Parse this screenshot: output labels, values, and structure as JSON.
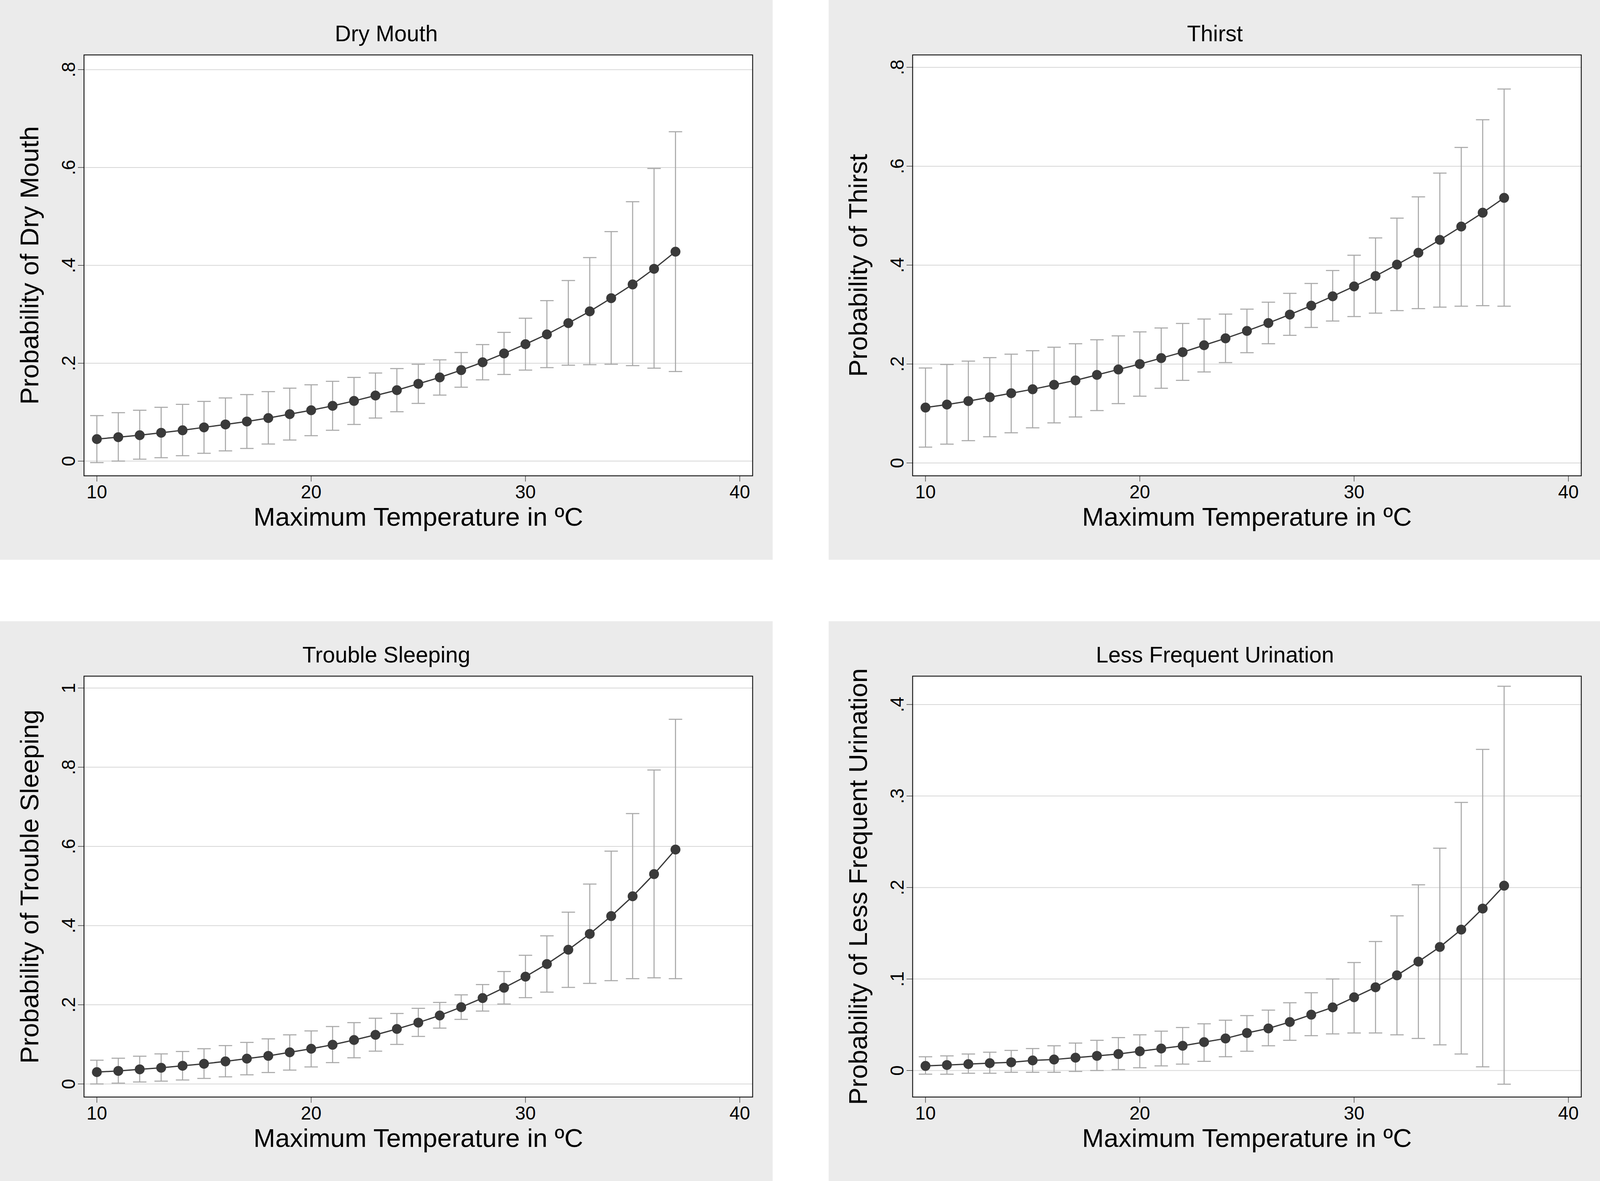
{
  "chart_data": [
    {
      "type": "line",
      "title": "Dry Mouth",
      "x_label": "Maximum Temperature in ºC",
      "y_label": "Probability of Dry Mouth",
      "marker": "circle",
      "color": "#3a3a3a",
      "grid": true,
      "x": [
        10,
        11,
        12,
        13,
        14,
        15,
        16,
        17,
        18,
        19,
        20,
        21,
        22,
        23,
        24,
        25,
        26,
        27,
        28,
        29,
        30,
        31,
        32,
        33,
        34,
        35,
        36,
        37
      ],
      "values": [
        0.045,
        0.049,
        0.053,
        0.058,
        0.063,
        0.069,
        0.075,
        0.081,
        0.088,
        0.096,
        0.104,
        0.113,
        0.123,
        0.134,
        0.145,
        0.158,
        0.171,
        0.186,
        0.202,
        0.22,
        0.239,
        0.259,
        0.282,
        0.306,
        0.333,
        0.361,
        0.393,
        0.428
      ],
      "ci_low": [
        -0.003,
        0.0,
        0.004,
        0.007,
        0.011,
        0.016,
        0.021,
        0.026,
        0.035,
        0.043,
        0.052,
        0.063,
        0.075,
        0.088,
        0.101,
        0.118,
        0.135,
        0.151,
        0.166,
        0.177,
        0.186,
        0.191,
        0.196,
        0.197,
        0.198,
        0.195,
        0.19,
        0.183
      ],
      "ci_high": [
        0.093,
        0.099,
        0.104,
        0.11,
        0.116,
        0.122,
        0.129,
        0.136,
        0.142,
        0.149,
        0.156,
        0.163,
        0.171,
        0.18,
        0.189,
        0.198,
        0.207,
        0.222,
        0.238,
        0.263,
        0.292,
        0.328,
        0.369,
        0.416,
        0.469,
        0.53,
        0.598,
        0.673
      ],
      "xlim": [
        9.4,
        40.6
      ],
      "xticks": [
        10,
        20,
        30,
        40
      ],
      "ylim": [
        -0.03,
        0.83
      ],
      "yticks": [
        0,
        {
          "value": 0.2,
          "label": ".2"
        },
        {
          "value": 0.4,
          "label": ".4"
        },
        {
          "value": 0.6,
          "label": ".6"
        },
        {
          "value": 0.8,
          "label": ".8"
        }
      ]
    },
    {
      "type": "line",
      "title": "Thirst",
      "x_label": "Maximum Temperature in ºC",
      "y_label": "Probability of Thirst",
      "marker": "circle",
      "color": "#3a3a3a",
      "grid": true,
      "x": [
        10,
        11,
        12,
        13,
        14,
        15,
        16,
        17,
        18,
        19,
        20,
        21,
        22,
        23,
        24,
        25,
        26,
        27,
        28,
        29,
        30,
        31,
        32,
        33,
        34,
        35,
        36,
        37
      ],
      "values": [
        0.112,
        0.118,
        0.125,
        0.133,
        0.141,
        0.149,
        0.158,
        0.167,
        0.178,
        0.189,
        0.2,
        0.212,
        0.224,
        0.238,
        0.252,
        0.267,
        0.283,
        0.3,
        0.318,
        0.337,
        0.357,
        0.378,
        0.401,
        0.425,
        0.451,
        0.478,
        0.506,
        0.536
      ],
      "ci_low": [
        0.032,
        0.038,
        0.045,
        0.053,
        0.061,
        0.071,
        0.081,
        0.093,
        0.106,
        0.12,
        0.135,
        0.151,
        0.167,
        0.184,
        0.203,
        0.223,
        0.241,
        0.258,
        0.274,
        0.287,
        0.296,
        0.303,
        0.308,
        0.312,
        0.315,
        0.317,
        0.318,
        0.317
      ],
      "ci_high": [
        0.192,
        0.199,
        0.206,
        0.213,
        0.22,
        0.227,
        0.234,
        0.241,
        0.249,
        0.257,
        0.265,
        0.273,
        0.282,
        0.291,
        0.301,
        0.311,
        0.325,
        0.343,
        0.363,
        0.389,
        0.42,
        0.455,
        0.495,
        0.538,
        0.586,
        0.638,
        0.694,
        0.756
      ],
      "xlim": [
        9.4,
        40.6
      ],
      "xticks": [
        10,
        20,
        30,
        40
      ],
      "ylim": [
        -0.026,
        0.825
      ],
      "yticks": [
        0,
        {
          "value": 0.2,
          "label": ".2"
        },
        {
          "value": 0.4,
          "label": ".4"
        },
        {
          "value": 0.6,
          "label": ".6"
        },
        {
          "value": 0.8,
          "label": ".8"
        }
      ]
    },
    {
      "type": "line",
      "title": "Trouble Sleeping",
      "x_label": "Maximum Temperature in ºC",
      "y_label": "Probability of Trouble Sleeping",
      "marker": "circle",
      "color": "#3a3a3a",
      "grid": true,
      "x": [
        10,
        11,
        12,
        13,
        14,
        15,
        16,
        17,
        18,
        19,
        20,
        21,
        22,
        23,
        24,
        25,
        26,
        27,
        28,
        29,
        30,
        31,
        32,
        33,
        34,
        35,
        36,
        37
      ],
      "values": [
        0.03,
        0.033,
        0.037,
        0.041,
        0.046,
        0.051,
        0.057,
        0.064,
        0.071,
        0.08,
        0.089,
        0.099,
        0.111,
        0.124,
        0.139,
        0.155,
        0.173,
        0.194,
        0.217,
        0.243,
        0.271,
        0.303,
        0.339,
        0.379,
        0.424,
        0.474,
        0.53,
        0.592
      ],
      "ci_low": [
        0.0,
        0.002,
        0.005,
        0.007,
        0.01,
        0.014,
        0.018,
        0.023,
        0.029,
        0.035,
        0.043,
        0.054,
        0.066,
        0.083,
        0.1,
        0.12,
        0.141,
        0.163,
        0.184,
        0.202,
        0.218,
        0.232,
        0.244,
        0.254,
        0.261,
        0.266,
        0.268,
        0.266
      ],
      "ci_high": [
        0.06,
        0.065,
        0.07,
        0.076,
        0.082,
        0.089,
        0.097,
        0.105,
        0.114,
        0.124,
        0.134,
        0.145,
        0.155,
        0.166,
        0.178,
        0.191,
        0.206,
        0.225,
        0.251,
        0.284,
        0.325,
        0.374,
        0.434,
        0.505,
        0.588,
        0.683,
        0.793,
        0.921
      ],
      "xlim": [
        9.4,
        40.6
      ],
      "xticks": [
        10,
        20,
        30,
        40
      ],
      "ylim": [
        -0.033,
        1.03
      ],
      "yticks": [
        0,
        {
          "value": 0.2,
          "label": ".2"
        },
        {
          "value": 0.4,
          "label": ".4"
        },
        {
          "value": 0.6,
          "label": ".6"
        },
        {
          "value": 0.8,
          "label": ".8"
        },
        1
      ]
    },
    {
      "type": "line",
      "title": "Less Frequent Urination",
      "x_label": "Maximum Temperature in ºC",
      "y_label": "Probability of Less Frequent Urination",
      "marker": "circle",
      "color": "#3a3a3a",
      "grid": true,
      "x": [
        10,
        11,
        12,
        13,
        14,
        15,
        16,
        17,
        18,
        19,
        20,
        21,
        22,
        23,
        24,
        25,
        26,
        27,
        28,
        29,
        30,
        31,
        32,
        33,
        34,
        35,
        36,
        37
      ],
      "values": [
        0.005,
        0.006,
        0.007,
        0.008,
        0.009,
        0.011,
        0.012,
        0.014,
        0.016,
        0.018,
        0.021,
        0.024,
        0.027,
        0.031,
        0.035,
        0.041,
        0.046,
        0.053,
        0.061,
        0.069,
        0.08,
        0.091,
        0.104,
        0.119,
        0.135,
        0.154,
        0.177,
        0.202
      ],
      "ci_low": [
        -0.004,
        -0.004,
        -0.003,
        -0.003,
        -0.002,
        -0.002,
        -0.002,
        -0.001,
        0.0,
        0.001,
        0.003,
        0.005,
        0.007,
        0.01,
        0.015,
        0.021,
        0.027,
        0.033,
        0.038,
        0.04,
        0.041,
        0.041,
        0.039,
        0.035,
        0.028,
        0.018,
        0.004,
        -0.015
      ],
      "ci_high": [
        0.015,
        0.016,
        0.018,
        0.02,
        0.022,
        0.024,
        0.027,
        0.03,
        0.033,
        0.036,
        0.039,
        0.043,
        0.047,
        0.051,
        0.055,
        0.06,
        0.066,
        0.074,
        0.085,
        0.1,
        0.118,
        0.141,
        0.169,
        0.203,
        0.243,
        0.293,
        0.351,
        0.42
      ],
      "xlim": [
        9.4,
        40.6
      ],
      "xticks": [
        10,
        20,
        30,
        40
      ],
      "ylim": [
        -0.029,
        0.431
      ],
      "yticks": [
        0,
        {
          "value": 0.1,
          "label": ".1"
        },
        {
          "value": 0.2,
          "label": ".2"
        },
        {
          "value": 0.3,
          "label": ".3"
        },
        {
          "value": 0.4,
          "label": ".4"
        }
      ]
    }
  ]
}
